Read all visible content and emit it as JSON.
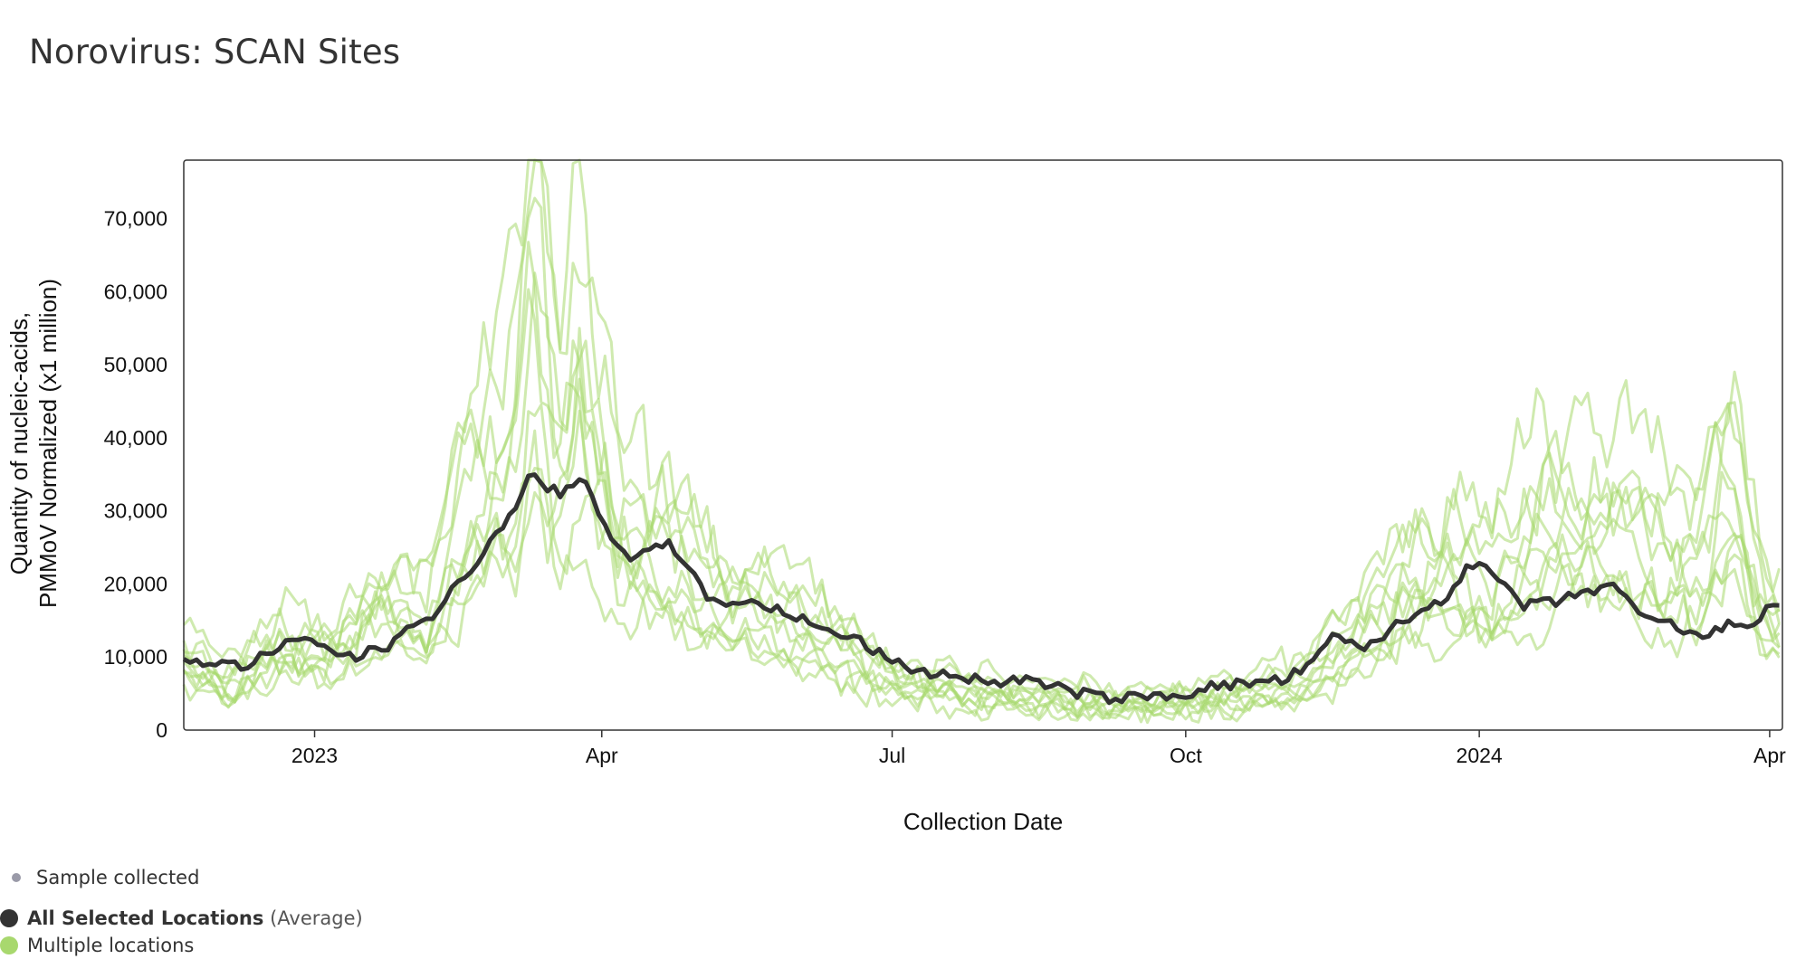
{
  "page": {
    "title": "Norovirus: SCAN Sites"
  },
  "legend": {
    "sample": "Sample collected",
    "average_name": "All Selected Locations",
    "average_suffix": "(Average)",
    "multiple": "Multiple locations",
    "colors": {
      "sample": "#9a9aa8",
      "average": "#333333",
      "multiple": "#a8d86e"
    }
  },
  "chart_data": {
    "type": "line",
    "xlabel": "Collection Date",
    "ylabel_lines": [
      "Quantity of nucleic-acids,",
      "PMMoV Normalized (x1 million)"
    ],
    "x_range": [
      "2022-11-21",
      "2024-04-05"
    ],
    "ylim": [
      0,
      78000
    ],
    "grid": false,
    "x_ticks": [
      {
        "date": "2023-01-01",
        "label": "2023"
      },
      {
        "date": "2023-04-01",
        "label": "Apr"
      },
      {
        "date": "2023-07-01",
        "label": "Jul"
      },
      {
        "date": "2023-10-01",
        "label": "Oct"
      },
      {
        "date": "2024-01-01",
        "label": "2024"
      },
      {
        "date": "2024-04-01",
        "label": "Apr"
      }
    ],
    "y_ticks": [
      {
        "value": 0,
        "label": "0"
      },
      {
        "value": 10000,
        "label": "10,000"
      },
      {
        "value": 20000,
        "label": "20,000"
      },
      {
        "value": 30000,
        "label": "30,000"
      },
      {
        "value": 40000,
        "label": "40,000"
      },
      {
        "value": 50000,
        "label": "50,000"
      },
      {
        "value": 60000,
        "label": "60,000"
      },
      {
        "value": 70000,
        "label": "70,000"
      }
    ],
    "series": [
      {
        "name": "All Selected Locations",
        "color": "#333333",
        "points": [
          [
            "2022-11-21",
            10000
          ],
          [
            "2022-12-01",
            9000
          ],
          [
            "2022-12-10",
            8800
          ],
          [
            "2022-12-20",
            11000
          ],
          [
            "2022-12-28",
            12500
          ],
          [
            "2023-01-05",
            11000
          ],
          [
            "2023-01-14",
            10000
          ],
          [
            "2023-01-24",
            11500
          ],
          [
            "2023-02-01",
            15000
          ],
          [
            "2023-02-08",
            16000
          ],
          [
            "2023-02-15",
            20000
          ],
          [
            "2023-02-22",
            24000
          ],
          [
            "2023-02-28",
            27000
          ],
          [
            "2023-03-05",
            31000
          ],
          [
            "2023-03-10",
            35000
          ],
          [
            "2023-03-14",
            33000
          ],
          [
            "2023-03-20",
            32500
          ],
          [
            "2023-03-27",
            34000
          ],
          [
            "2023-04-03",
            27000
          ],
          [
            "2023-04-10",
            23500
          ],
          [
            "2023-04-16",
            25000
          ],
          [
            "2023-04-22",
            25500
          ],
          [
            "2023-04-28",
            22500
          ],
          [
            "2023-05-05",
            17500
          ],
          [
            "2023-05-12",
            17800
          ],
          [
            "2023-05-20",
            17000
          ],
          [
            "2023-05-30",
            16000
          ],
          [
            "2023-06-10",
            13500
          ],
          [
            "2023-06-20",
            12500
          ],
          [
            "2023-06-30",
            9500
          ],
          [
            "2023-07-10",
            8000
          ],
          [
            "2023-07-20",
            7500
          ],
          [
            "2023-08-01",
            6500
          ],
          [
            "2023-08-10",
            7000
          ],
          [
            "2023-08-20",
            6000
          ],
          [
            "2023-08-31",
            4800
          ],
          [
            "2023-09-10",
            4300
          ],
          [
            "2023-09-20",
            4600
          ],
          [
            "2023-10-01",
            5000
          ],
          [
            "2023-10-10",
            6000
          ],
          [
            "2023-10-20",
            6400
          ],
          [
            "2023-10-31",
            6800
          ],
          [
            "2023-11-10",
            9000
          ],
          [
            "2023-11-16",
            13000
          ],
          [
            "2023-11-25",
            11000
          ],
          [
            "2023-12-05",
            14000
          ],
          [
            "2023-12-15",
            16500
          ],
          [
            "2023-12-22",
            18500
          ],
          [
            "2023-12-29",
            23000
          ],
          [
            "2024-01-06",
            21000
          ],
          [
            "2024-01-15",
            17000
          ],
          [
            "2024-01-25",
            17500
          ],
          [
            "2024-02-04",
            19000
          ],
          [
            "2024-02-12",
            20000
          ],
          [
            "2024-02-20",
            15500
          ],
          [
            "2024-03-01",
            14500
          ],
          [
            "2024-03-10",
            12500
          ],
          [
            "2024-03-20",
            14500
          ],
          [
            "2024-03-29",
            15000
          ],
          [
            "2024-04-02",
            17500
          ],
          [
            "2024-04-05",
            16500
          ]
        ]
      },
      {
        "name": "Multiple locations",
        "color": "#a8d86e",
        "points": [
          [
            "2022-11-21",
            14000
          ],
          [
            "2022-12-05",
            9000
          ],
          [
            "2022-12-20",
            16000
          ],
          [
            "2023-01-05",
            14000
          ],
          [
            "2023-01-20",
            24000
          ],
          [
            "2023-02-05",
            19000
          ],
          [
            "2023-02-20",
            45000
          ],
          [
            "2023-03-05",
            52000
          ],
          [
            "2023-03-10",
            78000
          ],
          [
            "2023-03-18",
            50000
          ],
          [
            "2023-03-25",
            66000
          ],
          [
            "2023-04-05",
            40000
          ],
          [
            "2023-04-15",
            34000
          ],
          [
            "2023-04-25",
            31000
          ],
          [
            "2023-05-05",
            25000
          ],
          [
            "2023-05-20",
            22000
          ],
          [
            "2023-06-05",
            18000
          ],
          [
            "2023-06-20",
            14000
          ],
          [
            "2023-07-05",
            9000
          ],
          [
            "2023-07-25",
            7000
          ],
          [
            "2023-08-15",
            6000
          ],
          [
            "2023-09-05",
            5000
          ],
          [
            "2023-09-25",
            5500
          ],
          [
            "2023-10-15",
            6000
          ],
          [
            "2023-11-05",
            9000
          ],
          [
            "2023-11-25",
            17000
          ],
          [
            "2023-12-15",
            30000
          ],
          [
            "2024-01-05",
            26000
          ],
          [
            "2024-01-20",
            38000
          ],
          [
            "2024-02-05",
            40000
          ],
          [
            "2024-02-25",
            32000
          ],
          [
            "2024-03-10",
            30000
          ],
          [
            "2024-03-20",
            50000
          ],
          [
            "2024-03-30",
            22000
          ],
          [
            "2024-04-05",
            20000
          ]
        ]
      }
    ]
  }
}
